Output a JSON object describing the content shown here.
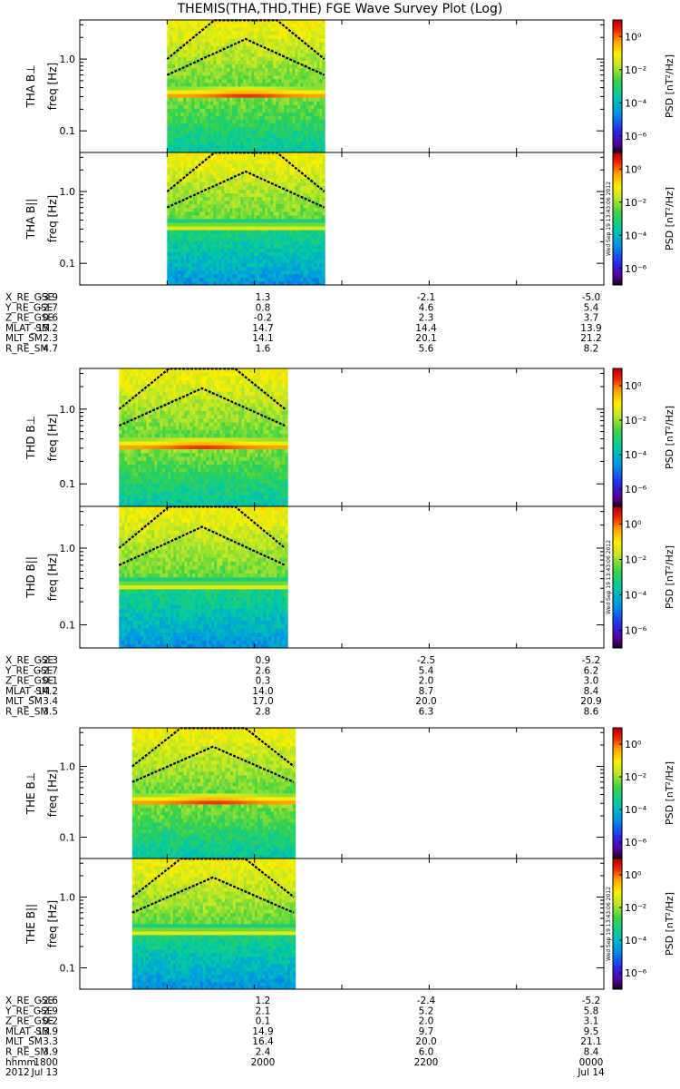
{
  "title": "THEMIS(THA,THD,THE) FGE Wave Survey Plot (Log)",
  "stamp": "Wed Sep 19 13:43:06 2012",
  "colorbar": {
    "label": "PSD [nT²/Hz]",
    "ticks": [
      "10⁰",
      "10⁻²",
      "10⁻⁴",
      "10⁻⁶"
    ],
    "tick_exponents": [
      0,
      -2,
      -4,
      -6
    ],
    "range_exp": [
      -7,
      1
    ]
  },
  "chart_data": [
    {
      "type": "heatmap",
      "probe": "THA",
      "component": "perp",
      "ylabel_top": "THA B⊥",
      "ylabel": "freq [Hz]",
      "yscale": "log",
      "ylim": [
        0.05,
        3.5
      ],
      "yticks": [
        "1.0",
        "0.1"
      ],
      "data_span_hours": [
        19.0,
        20.8
      ],
      "intense_band_hz": 0.3
    },
    {
      "type": "heatmap",
      "probe": "THA",
      "component": "par",
      "ylabel_top": "THA B||",
      "ylabel": "freq [Hz]",
      "yscale": "log",
      "ylim": [
        0.05,
        3.5
      ],
      "yticks": [
        "1.0",
        "0.1"
      ],
      "data_span_hours": [
        19.0,
        20.8
      ],
      "intense_band_hz": 0.3
    },
    {
      "type": "heatmap",
      "probe": "THD",
      "component": "perp",
      "ylabel_top": "THD B⊥",
      "ylabel": "freq [Hz]",
      "yscale": "log",
      "ylim": [
        0.05,
        3.5
      ],
      "yticks": [
        "1.0",
        "0.1"
      ],
      "data_span_hours": [
        18.45,
        20.35
      ],
      "intense_band_hz": 0.3
    },
    {
      "type": "heatmap",
      "probe": "THD",
      "component": "par",
      "ylabel_top": "THD B||",
      "ylabel": "freq [Hz]",
      "yscale": "log",
      "ylim": [
        0.05,
        3.5
      ],
      "yticks": [
        "1.0",
        "0.1"
      ],
      "data_span_hours": [
        18.45,
        20.35
      ],
      "intense_band_hz": 0.3
    },
    {
      "type": "heatmap",
      "probe": "THE",
      "component": "perp",
      "ylabel_top": "THE B⊥",
      "ylabel": "freq [Hz]",
      "yscale": "log",
      "ylim": [
        0.05,
        3.5
      ],
      "yticks": [
        "1.0",
        "0.1"
      ],
      "data_span_hours": [
        18.6,
        20.45
      ],
      "intense_band_hz": 0.3
    },
    {
      "type": "heatmap",
      "probe": "THE",
      "component": "par",
      "ylabel_top": "THE B||",
      "ylabel": "freq [Hz]",
      "yscale": "log",
      "ylim": [
        0.05,
        3.5
      ],
      "yticks": [
        "1.0",
        "0.1"
      ],
      "data_span_hours": [
        18.6,
        20.45
      ],
      "intense_band_hz": 0.3
    }
  ],
  "time_axis": {
    "start_hours": 18.0,
    "end_hours": 24.0
  },
  "ephemeris": [
    {
      "probe": "THA",
      "rows": [
        {
          "label": "X_RE_GSE",
          "values": [
            "-3.9",
            "1.3",
            "-2.1",
            "-5.0"
          ]
        },
        {
          "label": "Y_RE_GSE",
          "values": [
            "-2.7",
            "0.8",
            "4.6",
            "5.4"
          ]
        },
        {
          "label": "Z_RE_GSE",
          "values": [
            "0.6",
            "-0.2",
            "2.3",
            "3.7"
          ]
        },
        {
          "label": "MLAT_SM",
          "values": [
            "-15.2",
            "14.7",
            "14.4",
            "13.9"
          ]
        },
        {
          "label": "MLT_SM",
          "values": [
            "2.3",
            "14.1",
            "20.1",
            "21.2"
          ]
        },
        {
          "label": "R_RE_SM",
          "values": [
            "4.7",
            "1.6",
            "5.6",
            "8.2"
          ]
        }
      ]
    },
    {
      "probe": "THD",
      "rows": [
        {
          "label": "X_RE_GSE",
          "values": [
            "-2.3",
            "0.9",
            "-2.5",
            "-5.2"
          ]
        },
        {
          "label": "Y_RE_GSE",
          "values": [
            "-2.7",
            "2.6",
            "5.4",
            "6.2"
          ]
        },
        {
          "label": "Z_RE_GSE",
          "values": [
            "0.1",
            "0.3",
            "2.0",
            "3.0"
          ]
        },
        {
          "label": "MLAT_SM",
          "values": [
            "-14.2",
            "14.0",
            "8.7",
            "8.4"
          ]
        },
        {
          "label": "MLT_SM",
          "values": [
            "3.4",
            "17.0",
            "20.0",
            "20.9"
          ]
        },
        {
          "label": "R_RE_SM",
          "values": [
            "3.5",
            "2.8",
            "6.3",
            "8.6"
          ]
        }
      ]
    },
    {
      "probe": "THE",
      "rows": [
        {
          "label": "X_RE_GSE",
          "values": [
            "-2.6",
            "1.2",
            "-2.4",
            "-5.2"
          ]
        },
        {
          "label": "Y_RE_GSE",
          "values": [
            "-2.9",
            "2.1",
            "5.2",
            "5.8"
          ]
        },
        {
          "label": "Z_RE_GSE",
          "values": [
            "0.2",
            "0.1",
            "2.0",
            "3.1"
          ]
        },
        {
          "label": "MLAT_SM",
          "values": [
            "-13.9",
            "14.9",
            "9.7",
            "9.5"
          ]
        },
        {
          "label": "MLT_SM",
          "values": [
            "3.3",
            "16.4",
            "20.0",
            "21.1"
          ]
        },
        {
          "label": "R_RE_SM",
          "values": [
            "3.9",
            "2.4",
            "6.0",
            "8.4"
          ]
        }
      ]
    }
  ],
  "time_labels": {
    "row1_label": "hhmm",
    "row1_values": [
      "1800",
      "2000",
      "2200",
      "0000"
    ],
    "row2_label": "2012",
    "row2_values": [
      "Jul 13",
      "",
      "",
      "Jul 14"
    ]
  }
}
